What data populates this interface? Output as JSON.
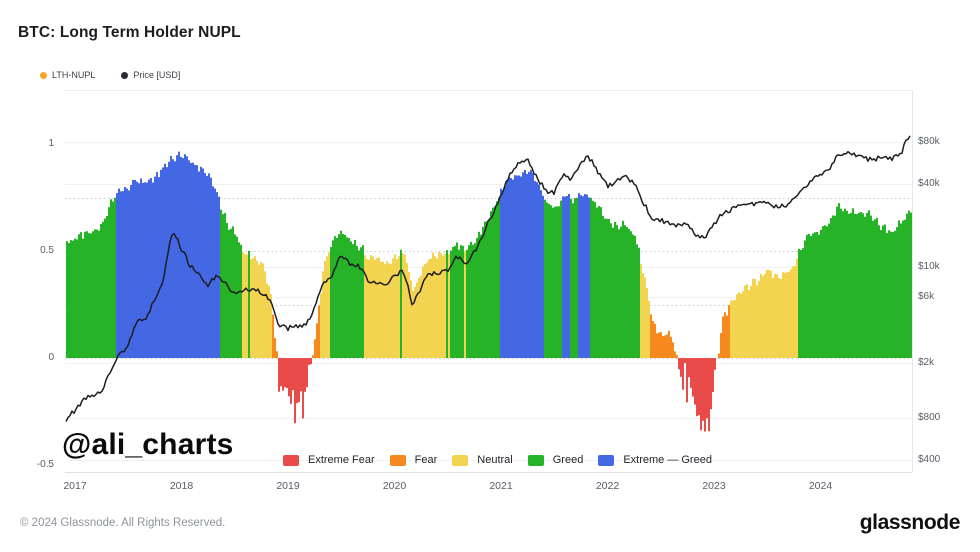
{
  "header": {
    "title": "BTC: Long Term Holder NUPL"
  },
  "top_legend": {
    "items": [
      {
        "label": "LTH-NUPL",
        "dot_color": "#f6a522"
      },
      {
        "label": "Price [USD]",
        "dot_color": "#2b2b31"
      }
    ]
  },
  "watermark": "@ali_charts",
  "band_legend": [
    {
      "label": "Extreme Fear",
      "color": "#e94b4b"
    },
    {
      "label": "Fear",
      "color": "#f68a1e"
    },
    {
      "label": "Neutral",
      "color": "#f3d451"
    },
    {
      "label": "Greed",
      "color": "#27b327"
    },
    {
      "label": "Extreme — Greed",
      "color": "#4467e3"
    }
  ],
  "axes": {
    "left_ticks": [
      "1",
      "0.5",
      "0",
      "-0.5"
    ],
    "right_ticks": [
      "$80k",
      "$40k",
      "$10k",
      "$6k",
      "$2k",
      "$800",
      "$400"
    ],
    "x_ticks": [
      "2017",
      "2018",
      "2019",
      "2020",
      "2021",
      "2022",
      "2023",
      "2024"
    ]
  },
  "footer": {
    "copyright": "© 2024 Glassnode. All Rights Reserved.",
    "brand": "glassnode"
  },
  "chart_data": {
    "type": "bar+line",
    "title": "BTC: Long Term Holder NUPL",
    "x_axis": {
      "range": [
        2016.92,
        2024.86
      ],
      "ticks": [
        2017,
        2018,
        2019,
        2020,
        2021,
        2022,
        2023,
        2024
      ]
    },
    "left_axis": {
      "label": "LTH-NUPL",
      "range": [
        -0.55,
        1.05
      ],
      "ticks": [
        1,
        0.5,
        0,
        -0.5
      ],
      "dotted_levels": [
        0.75,
        0.5,
        0.25,
        0
      ],
      "grid": "dotted"
    },
    "right_axis": {
      "label": "Price [USD]",
      "scale": "log",
      "ticks": [
        80000,
        40000,
        10000,
        6000,
        2000,
        800,
        400
      ],
      "grid": "solid-faint"
    },
    "legend_position": "bottom-center",
    "bands": [
      {
        "label": "Extreme Fear",
        "range": [
          -1,
          0
        ],
        "color": "#e94b4b"
      },
      {
        "label": "Fear",
        "range": [
          0,
          0.25
        ],
        "color": "#f68a1e"
      },
      {
        "label": "Neutral",
        "range": [
          0.25,
          0.5
        ],
        "color": "#f3d451"
      },
      {
        "label": "Greed",
        "range": [
          0.5,
          0.75
        ],
        "color": "#27b327"
      },
      {
        "label": "Extreme — Greed",
        "range": [
          0.75,
          1.1
        ],
        "color": "#4467e3"
      }
    ],
    "price_line_color": "#1d1d22",
    "samples_columns": [
      "year_decimal",
      "lth_nupl",
      "price_usd"
    ],
    "samples": [
      [
        2016.92,
        0.54,
        780
      ],
      [
        2017.0,
        0.56,
        950
      ],
      [
        2017.08,
        0.58,
        1080
      ],
      [
        2017.17,
        0.6,
        1150
      ],
      [
        2017.25,
        0.62,
        1250
      ],
      [
        2017.33,
        0.73,
        1750
      ],
      [
        2017.42,
        0.79,
        2300
      ],
      [
        2017.5,
        0.8,
        2550
      ],
      [
        2017.58,
        0.83,
        4200
      ],
      [
        2017.67,
        0.82,
        4100
      ],
      [
        2017.75,
        0.85,
        5700
      ],
      [
        2017.83,
        0.89,
        7800
      ],
      [
        2017.92,
        0.94,
        18500
      ],
      [
        2018.0,
        0.95,
        13500
      ],
      [
        2018.08,
        0.91,
        9800
      ],
      [
        2018.17,
        0.89,
        8800
      ],
      [
        2018.25,
        0.85,
        7600
      ],
      [
        2018.33,
        0.76,
        8600
      ],
      [
        2018.42,
        0.63,
        7200
      ],
      [
        2018.5,
        0.58,
        6500
      ],
      [
        2018.58,
        0.5,
        6900
      ],
      [
        2018.67,
        0.46,
        6600
      ],
      [
        2018.75,
        0.44,
        6400
      ],
      [
        2018.83,
        0.3,
        5900
      ],
      [
        2018.92,
        -0.14,
        3700
      ],
      [
        2019.0,
        -0.18,
        3500
      ],
      [
        2019.08,
        -0.2,
        3700
      ],
      [
        2019.17,
        -0.13,
        3900
      ],
      [
        2019.25,
        0.1,
        5100
      ],
      [
        2019.33,
        0.44,
        7300
      ],
      [
        2019.42,
        0.56,
        8700
      ],
      [
        2019.5,
        0.58,
        12500
      ],
      [
        2019.58,
        0.55,
        10500
      ],
      [
        2019.67,
        0.52,
        9800
      ],
      [
        2019.75,
        0.47,
        8300
      ],
      [
        2019.83,
        0.46,
        7600
      ],
      [
        2019.92,
        0.44,
        7200
      ],
      [
        2020.0,
        0.47,
        8600
      ],
      [
        2020.08,
        0.5,
        9700
      ],
      [
        2020.17,
        0.31,
        5200
      ],
      [
        2020.25,
        0.41,
        6900
      ],
      [
        2020.33,
        0.47,
        8900
      ],
      [
        2020.42,
        0.48,
        9400
      ],
      [
        2020.5,
        0.49,
        9200
      ],
      [
        2020.58,
        0.53,
        11500
      ],
      [
        2020.67,
        0.51,
        10700
      ],
      [
        2020.75,
        0.54,
        13000
      ],
      [
        2020.83,
        0.62,
        16500
      ],
      [
        2020.92,
        0.7,
        23500
      ],
      [
        2021.0,
        0.79,
        33000
      ],
      [
        2021.08,
        0.84,
        46000
      ],
      [
        2021.17,
        0.86,
        55000
      ],
      [
        2021.25,
        0.88,
        58000
      ],
      [
        2021.33,
        0.82,
        47000
      ],
      [
        2021.42,
        0.73,
        35000
      ],
      [
        2021.5,
        0.7,
        33000
      ],
      [
        2021.58,
        0.76,
        46000
      ],
      [
        2021.67,
        0.74,
        44000
      ],
      [
        2021.75,
        0.77,
        57000
      ],
      [
        2021.83,
        0.75,
        60000
      ],
      [
        2021.92,
        0.7,
        48000
      ],
      [
        2022.0,
        0.64,
        39000
      ],
      [
        2022.08,
        0.62,
        40000
      ],
      [
        2022.17,
        0.62,
        44000
      ],
      [
        2022.25,
        0.57,
        41000
      ],
      [
        2022.33,
        0.4,
        30000
      ],
      [
        2022.42,
        0.15,
        21000
      ],
      [
        2022.5,
        0.1,
        21500
      ],
      [
        2022.58,
        0.12,
        21500
      ],
      [
        2022.67,
        -0.05,
        19500
      ],
      [
        2022.75,
        -0.07,
        19500
      ],
      [
        2022.83,
        -0.25,
        16500
      ],
      [
        2022.92,
        -0.3,
        16800
      ],
      [
        2023.0,
        -0.1,
        19800
      ],
      [
        2023.08,
        0.2,
        23500
      ],
      [
        2023.17,
        0.26,
        26500
      ],
      [
        2023.25,
        0.32,
        29000
      ],
      [
        2023.33,
        0.34,
        27200
      ],
      [
        2023.42,
        0.37,
        28500
      ],
      [
        2023.5,
        0.41,
        30200
      ],
      [
        2023.58,
        0.38,
        27500
      ],
      [
        2023.67,
        0.4,
        26500
      ],
      [
        2023.75,
        0.44,
        32000
      ],
      [
        2023.83,
        0.54,
        36800
      ],
      [
        2023.92,
        0.58,
        43000
      ],
      [
        2024.0,
        0.6,
        44500
      ],
      [
        2024.08,
        0.64,
        51000
      ],
      [
        2024.17,
        0.71,
        68000
      ],
      [
        2024.25,
        0.69,
        64500
      ],
      [
        2024.33,
        0.67,
        63500
      ],
      [
        2024.42,
        0.68,
        62000
      ],
      [
        2024.5,
        0.64,
        61500
      ],
      [
        2024.58,
        0.61,
        59000
      ],
      [
        2024.67,
        0.59,
        60500
      ],
      [
        2024.75,
        0.64,
        66500
      ],
      [
        2024.83,
        0.68,
        88000
      ],
      [
        2024.86,
        0.69,
        90000
      ]
    ]
  }
}
